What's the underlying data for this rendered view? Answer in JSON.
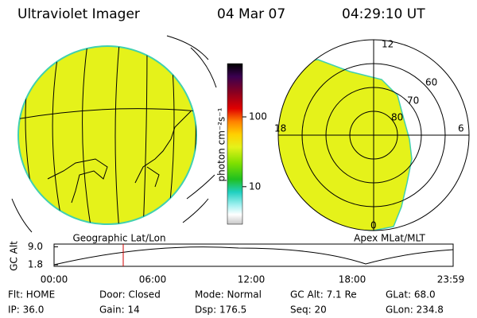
{
  "header": {
    "title": "Ultraviolet Imager",
    "date": "04 Mar 07",
    "time": "04:29:10 UT"
  },
  "colorbar": {
    "label": "photon cm⁻²s⁻¹",
    "scale": "log",
    "lim": [
      2.9,
      580
    ],
    "ticks": [
      10,
      100
    ]
  },
  "polar_plot": {
    "mlt_labels": [
      "12",
      "18",
      "6",
      "0"
    ],
    "mlat_labels": [
      "60",
      "70",
      "80"
    ]
  },
  "panel_labels": {
    "left": "Geographic Lat/Lon",
    "right": "Apex MLat/MLT"
  },
  "altitude_plot": {
    "y_label": "GC Alt",
    "yticks": [
      {
        "value": 9,
        "label": "9.0"
      },
      {
        "value": 1.8,
        "label": "1.8"
      }
    ],
    "ylim": [
      1.2,
      10.1
    ],
    "x_labels": [
      "00:00",
      "06:00",
      "12:00",
      "18:00",
      "23:59"
    ]
  },
  "footer": {
    "rows": [
      [
        "Flt: HOME",
        "Door: Closed",
        "Mode: Normal",
        "GC Alt: 7.1 Re",
        "GLat: 68.0"
      ],
      [
        "IP: 36.0",
        "Gain: 14",
        "Dsp: 176.5",
        "Seq: 20",
        "GLon: 234.8"
      ]
    ]
  }
}
